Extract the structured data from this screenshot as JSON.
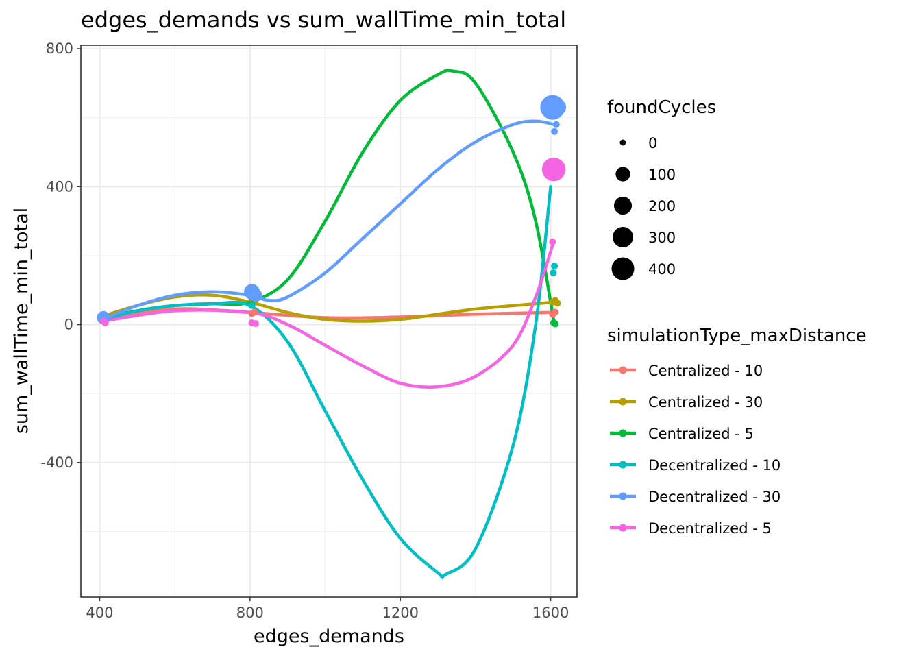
{
  "chart_data": {
    "type": "scatter",
    "title": "edges_demands  vs  sum_wallTime_min_total",
    "xlabel": "edges_demands",
    "ylabel": "sum_wallTime_min_total",
    "xlim": [
      350,
      1670
    ],
    "ylim": [
      -790,
      810
    ],
    "x_ticks": [
      400,
      800,
      1200,
      1600
    ],
    "y_ticks": [
      -400,
      0,
      400,
      800
    ],
    "x_tick_labels": [
      "400",
      "800",
      "1200",
      "1600"
    ],
    "y_tick_labels": [
      "-400",
      "0",
      "400",
      "800"
    ],
    "grid": true,
    "legend_position": "right",
    "size_legend": {
      "title": "foundCycles",
      "levels": [
        0,
        100,
        200,
        300,
        400
      ],
      "labels": [
        "0",
        "100",
        "200",
        "300",
        "400"
      ]
    },
    "color_legend": {
      "title": "simulationType_maxDistance"
    },
    "series": [
      {
        "name": "Centralized - 10",
        "color": "#F8766D",
        "curve": [
          [
            410,
            15
          ],
          [
            600,
            45
          ],
          [
            800,
            35
          ],
          [
            1000,
            20
          ],
          [
            1200,
            22
          ],
          [
            1400,
            30
          ],
          [
            1600,
            35
          ]
        ],
        "points": [
          [
            410,
            15,
            0
          ],
          [
            415,
            18,
            0
          ],
          [
            805,
            32,
            0
          ],
          [
            812,
            36,
            0
          ],
          [
            1605,
            30,
            0
          ],
          [
            1612,
            36,
            0
          ]
        ]
      },
      {
        "name": "Centralized - 30",
        "color": "#B79F00",
        "curve": [
          [
            410,
            25
          ],
          [
            500,
            55
          ],
          [
            600,
            80
          ],
          [
            700,
            85
          ],
          [
            800,
            65
          ],
          [
            900,
            35
          ],
          [
            1000,
            15
          ],
          [
            1100,
            10
          ],
          [
            1200,
            15
          ],
          [
            1300,
            30
          ],
          [
            1400,
            45
          ],
          [
            1500,
            55
          ],
          [
            1610,
            65
          ]
        ],
        "points": [
          [
            408,
            22,
            0
          ],
          [
            412,
            28,
            0
          ],
          [
            805,
            75,
            0
          ],
          [
            812,
            65,
            0
          ],
          [
            1605,
            65,
            0
          ],
          [
            1612,
            70,
            0
          ],
          [
            1618,
            62,
            0
          ]
        ]
      },
      {
        "name": "Centralized - 5",
        "color": "#00BA38",
        "curve": [
          [
            410,
            20
          ],
          [
            500,
            40
          ],
          [
            600,
            55
          ],
          [
            700,
            60
          ],
          [
            800,
            65
          ],
          [
            900,
            130
          ],
          [
            1000,
            300
          ],
          [
            1100,
            500
          ],
          [
            1200,
            650
          ],
          [
            1300,
            725
          ],
          [
            1340,
            735
          ],
          [
            1400,
            700
          ],
          [
            1500,
            500
          ],
          [
            1560,
            300
          ],
          [
            1610,
            0
          ]
        ],
        "points": [
          [
            410,
            20,
            0
          ],
          [
            805,
            60,
            0
          ],
          [
            1608,
            5,
            0
          ],
          [
            1612,
            2,
            0
          ]
        ]
      },
      {
        "name": "Decentralized - 10",
        "color": "#00BFC4",
        "curve": [
          [
            410,
            15
          ],
          [
            500,
            40
          ],
          [
            600,
            55
          ],
          [
            700,
            60
          ],
          [
            800,
            55
          ],
          [
            900,
            -50
          ],
          [
            1000,
            -250
          ],
          [
            1100,
            -450
          ],
          [
            1200,
            -620
          ],
          [
            1300,
            -720
          ],
          [
            1320,
            -725
          ],
          [
            1400,
            -650
          ],
          [
            1500,
            -350
          ],
          [
            1560,
            0
          ],
          [
            1600,
            400
          ]
        ],
        "points": [
          [
            410,
            15,
            0
          ],
          [
            805,
            55,
            0
          ],
          [
            1605,
            630,
            350
          ],
          [
            1610,
            170,
            0
          ],
          [
            1607,
            150,
            0
          ]
        ]
      },
      {
        "name": "Decentralized - 30",
        "color": "#619CFF",
        "curve": [
          [
            410,
            15
          ],
          [
            500,
            55
          ],
          [
            600,
            85
          ],
          [
            700,
            95
          ],
          [
            800,
            85
          ],
          [
            850,
            70
          ],
          [
            900,
            80
          ],
          [
            1000,
            150
          ],
          [
            1100,
            250
          ],
          [
            1200,
            350
          ],
          [
            1300,
            450
          ],
          [
            1400,
            530
          ],
          [
            1500,
            580
          ],
          [
            1560,
            590
          ],
          [
            1610,
            580
          ]
        ],
        "points": [
          [
            410,
            20,
            50
          ],
          [
            805,
            95,
            100
          ],
          [
            815,
            85,
            50
          ],
          [
            1605,
            630,
            400
          ],
          [
            1620,
            630,
            100
          ],
          [
            1610,
            560,
            0
          ],
          [
            1615,
            580,
            0
          ]
        ]
      },
      {
        "name": "Decentralized - 5",
        "color": "#F564E3",
        "curve": [
          [
            410,
            10
          ],
          [
            600,
            40
          ],
          [
            800,
            35
          ],
          [
            900,
            0
          ],
          [
            1000,
            -60
          ],
          [
            1100,
            -120
          ],
          [
            1200,
            -170
          ],
          [
            1300,
            -180
          ],
          [
            1400,
            -150
          ],
          [
            1500,
            -60
          ],
          [
            1560,
            80
          ],
          [
            1605,
            230
          ]
        ],
        "points": [
          [
            410,
            10,
            0
          ],
          [
            415,
            5,
            0
          ],
          [
            805,
            5,
            0
          ],
          [
            815,
            3,
            0
          ],
          [
            1608,
            450,
            350
          ],
          [
            1612,
            470,
            0
          ],
          [
            1605,
            240,
            0
          ]
        ]
      }
    ]
  }
}
